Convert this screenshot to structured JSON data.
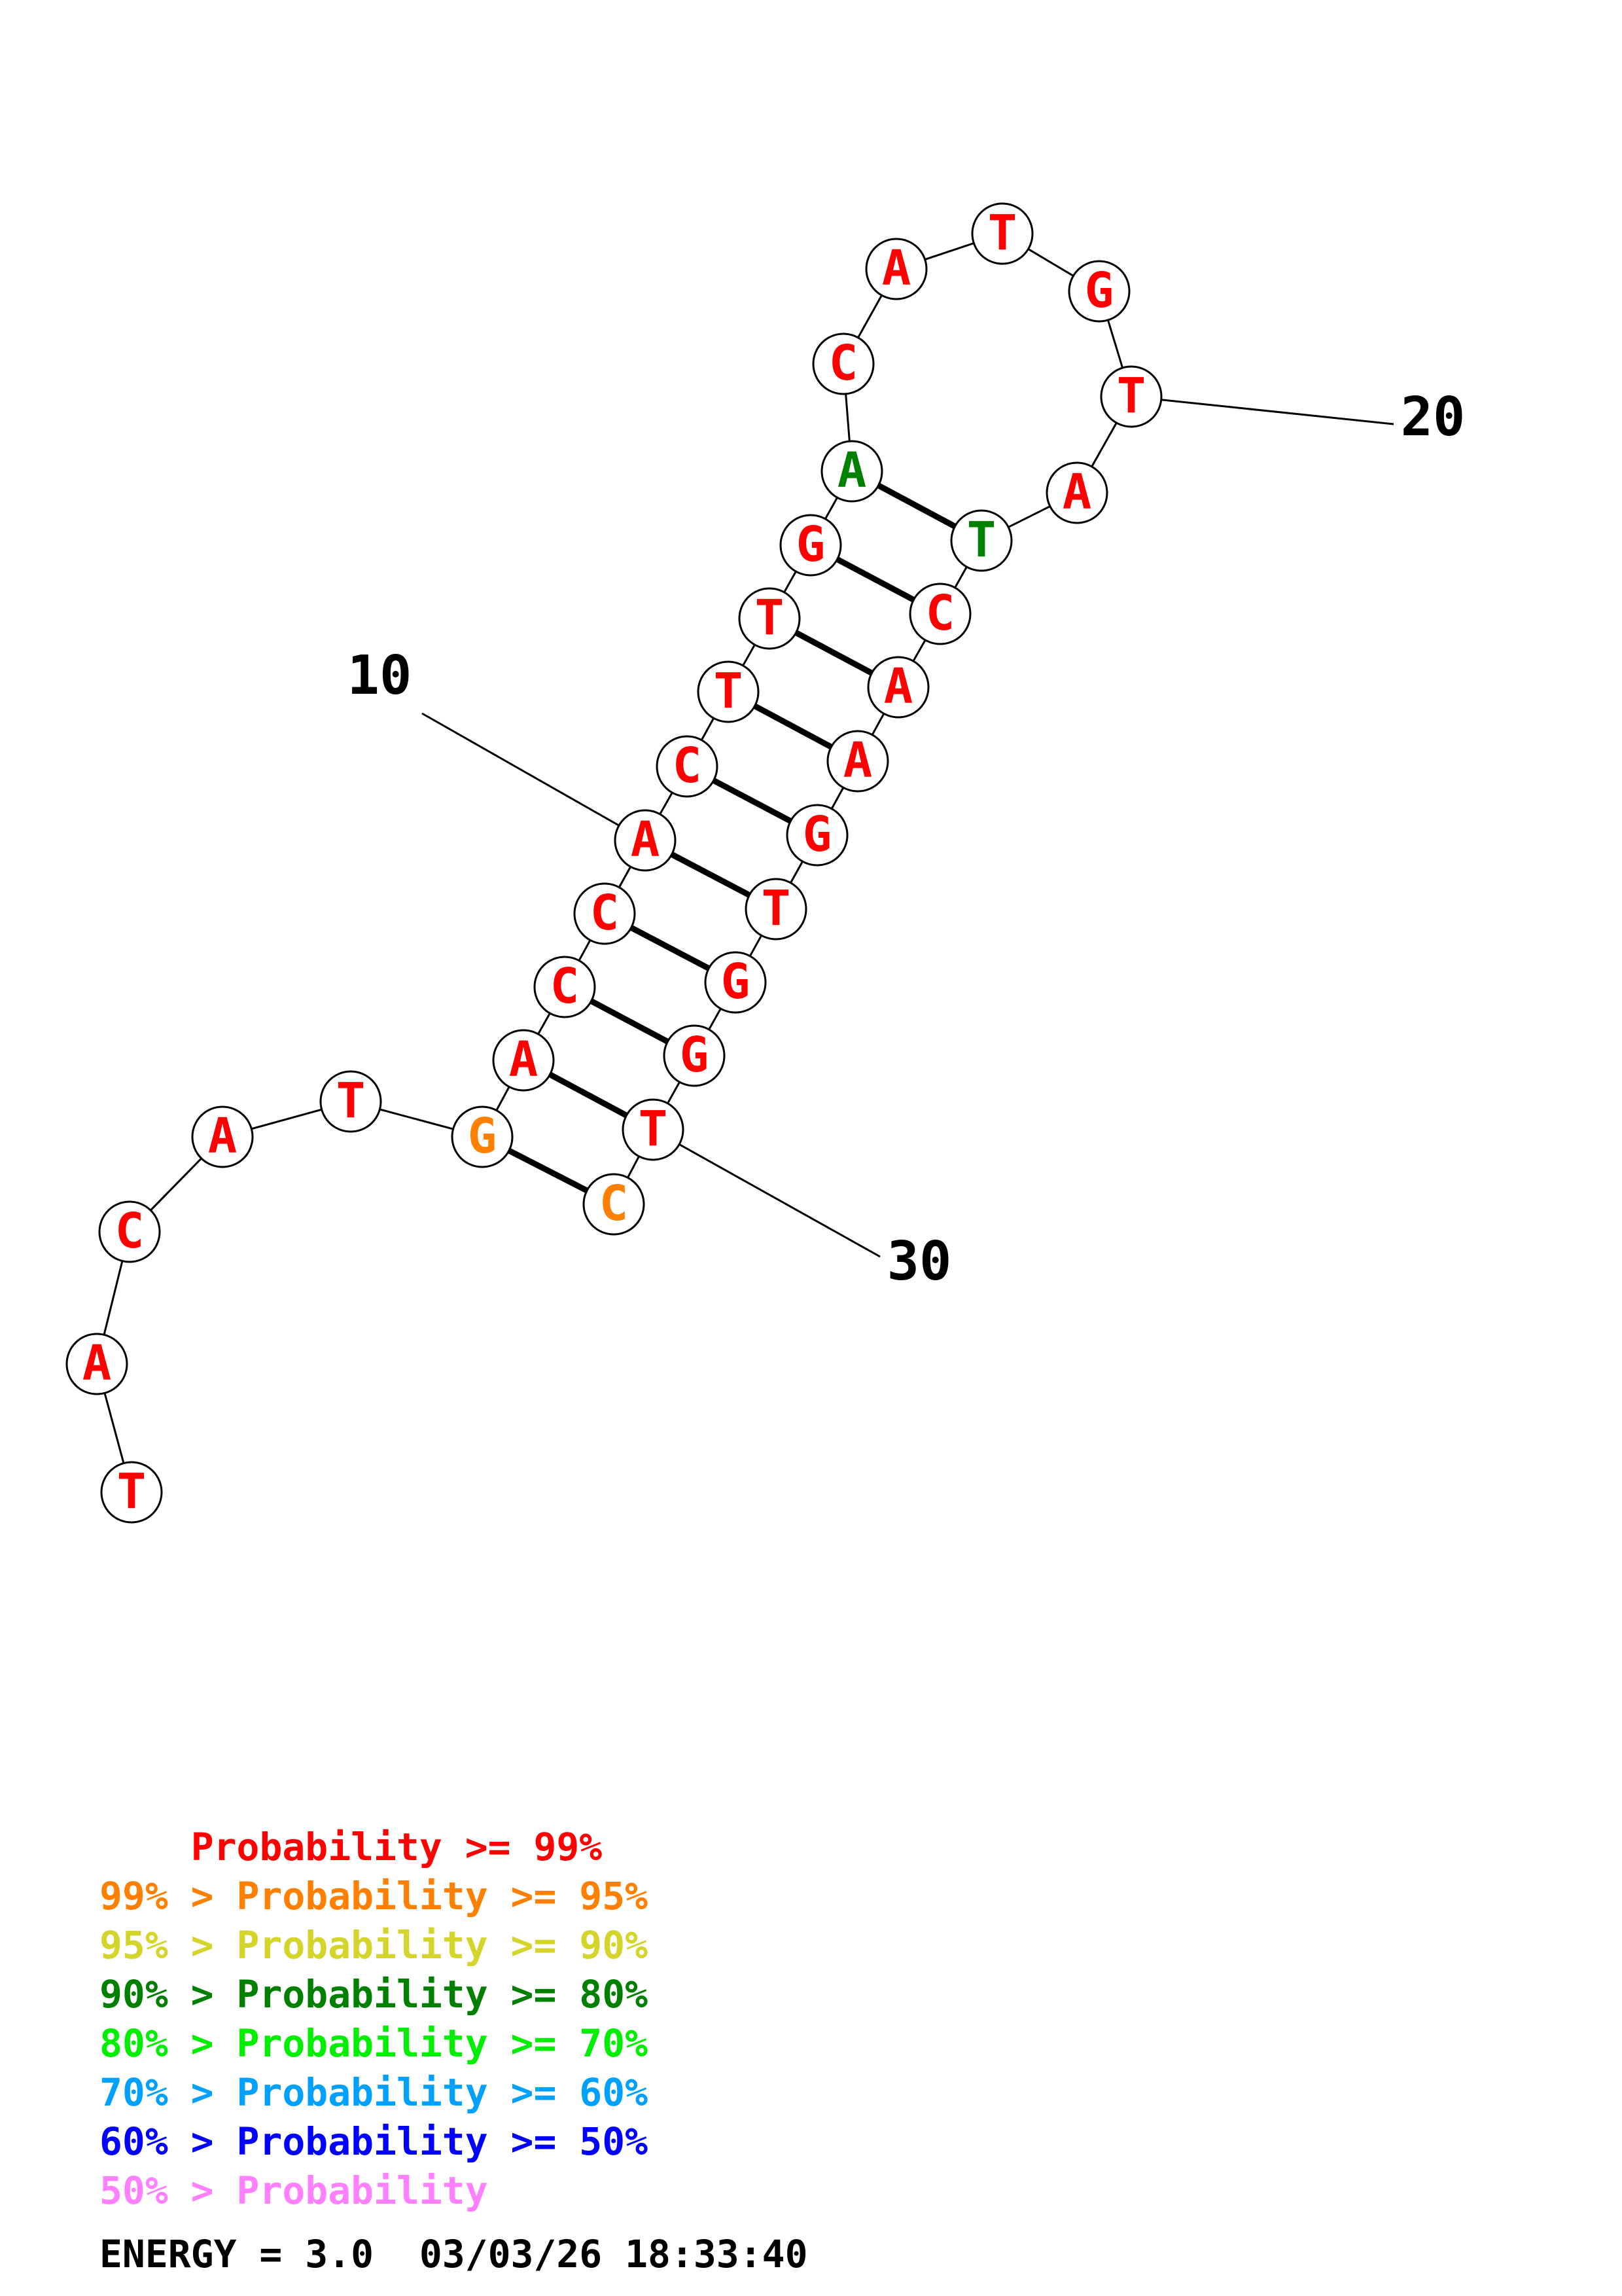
{
  "colors": {
    "p99": "#ff0000",
    "p95": "#ff8000",
    "p90": "#d4d42a",
    "p80": "#008000",
    "p70": "#00ee00",
    "p60": "#00a0ff",
    "p50": "#0000ff",
    "plow": "#ff80ff",
    "line": "#000000",
    "circle_fill": "#ffffff"
  },
  "sequence": [
    {
      "n": 1,
      "base": "T",
      "prob": "p99"
    },
    {
      "n": 2,
      "base": "A",
      "prob": "p99"
    },
    {
      "n": 3,
      "base": "C",
      "prob": "p99"
    },
    {
      "n": 4,
      "base": "A",
      "prob": "p99"
    },
    {
      "n": 5,
      "base": "T",
      "prob": "p99"
    },
    {
      "n": 6,
      "base": "G",
      "prob": "p95"
    },
    {
      "n": 7,
      "base": "A",
      "prob": "p99"
    },
    {
      "n": 8,
      "base": "C",
      "prob": "p99"
    },
    {
      "n": 9,
      "base": "C",
      "prob": "p99"
    },
    {
      "n": 10,
      "base": "A",
      "prob": "p99"
    },
    {
      "n": 11,
      "base": "C",
      "prob": "p99"
    },
    {
      "n": 12,
      "base": "T",
      "prob": "p99"
    },
    {
      "n": 13,
      "base": "T",
      "prob": "p99"
    },
    {
      "n": 14,
      "base": "G",
      "prob": "p99"
    },
    {
      "n": 15,
      "base": "A",
      "prob": "p80"
    },
    {
      "n": 16,
      "base": "C",
      "prob": "p99"
    },
    {
      "n": 17,
      "base": "A",
      "prob": "p99"
    },
    {
      "n": 18,
      "base": "T",
      "prob": "p99"
    },
    {
      "n": 19,
      "base": "G",
      "prob": "p99"
    },
    {
      "n": 20,
      "base": "T",
      "prob": "p99"
    },
    {
      "n": 21,
      "base": "A",
      "prob": "p99"
    },
    {
      "n": 22,
      "base": "T",
      "prob": "p80"
    },
    {
      "n": 23,
      "base": "C",
      "prob": "p99"
    },
    {
      "n": 24,
      "base": "A",
      "prob": "p99"
    },
    {
      "n": 25,
      "base": "A",
      "prob": "p99"
    },
    {
      "n": 26,
      "base": "G",
      "prob": "p99"
    },
    {
      "n": 27,
      "base": "T",
      "prob": "p99"
    },
    {
      "n": 28,
      "base": "G",
      "prob": "p99"
    },
    {
      "n": 29,
      "base": "G",
      "prob": "p99"
    },
    {
      "n": 30,
      "base": "T",
      "prob": "p99"
    },
    {
      "n": 31,
      "base": "C",
      "prob": "p95"
    }
  ],
  "pairs": [
    [
      6,
      31
    ],
    [
      7,
      30
    ],
    [
      8,
      29
    ],
    [
      9,
      28
    ],
    [
      10,
      27
    ],
    [
      11,
      26
    ],
    [
      12,
      25
    ],
    [
      13,
      24
    ],
    [
      14,
      23
    ],
    [
      15,
      22
    ]
  ],
  "position_labels": [
    {
      "n": 10,
      "text": "10"
    },
    {
      "n": 20,
      "text": "20"
    },
    {
      "n": 30,
      "text": "30"
    }
  ],
  "legend": [
    {
      "prefix": "    ",
      "prefix_color": "p99",
      "text": "Probability >= 99%",
      "color": "p99"
    },
    {
      "prefix": "99% > ",
      "prefix_color": "p95",
      "text": "Probability >= 95%",
      "color": "p95"
    },
    {
      "prefix": "95% > ",
      "prefix_color": "p90",
      "text": "Probability >= 90%",
      "color": "p90"
    },
    {
      "prefix": "90% > ",
      "prefix_color": "p80",
      "text": "Probability >= 80%",
      "color": "p80"
    },
    {
      "prefix": "80% > ",
      "prefix_color": "p70",
      "text": "Probability >= 70%",
      "color": "p70"
    },
    {
      "prefix": "70% > ",
      "prefix_color": "p60",
      "text": "Probability >= 60%",
      "color": "p60"
    },
    {
      "prefix": "60% > ",
      "prefix_color": "p50",
      "text": "Probability >= 50%",
      "color": "p50"
    },
    {
      "prefix": "50% > ",
      "prefix_color": "plow",
      "text": "Probability",
      "color": "plow"
    }
  ],
  "energy": "ENERGY = 3.0  03/03/26 18:33:40"
}
